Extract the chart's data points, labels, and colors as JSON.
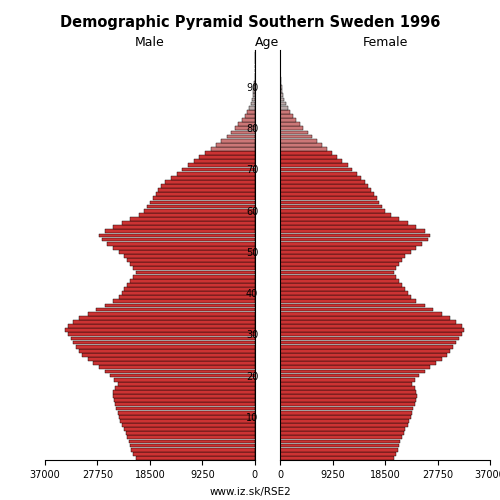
{
  "title": "Demographic Pyramid Southern Sweden 1996",
  "label_male": "Male",
  "label_age": "Age",
  "label_female": "Female",
  "watermark": "www.iz.sk/RSE2",
  "xlim": 37000,
  "bar_color_young": "#CC3333",
  "bar_color_mid": "#CC7777",
  "bar_color_old": "#BBAAAA",
  "bar_edge_color": "#000000",
  "bar_linewidth": 0.3,
  "color_threshold_1": 75,
  "color_threshold_2": 85,
  "ages": [
    0,
    1,
    2,
    3,
    4,
    5,
    6,
    7,
    8,
    9,
    10,
    11,
    12,
    13,
    14,
    15,
    16,
    17,
    18,
    19,
    20,
    21,
    22,
    23,
    24,
    25,
    26,
    27,
    28,
    29,
    30,
    31,
    32,
    33,
    34,
    35,
    36,
    37,
    38,
    39,
    40,
    41,
    42,
    43,
    44,
    45,
    46,
    47,
    48,
    49,
    50,
    51,
    52,
    53,
    54,
    55,
    56,
    57,
    58,
    59,
    60,
    61,
    62,
    63,
    64,
    65,
    66,
    67,
    68,
    69,
    70,
    71,
    72,
    73,
    74,
    75,
    76,
    77,
    78,
    79,
    80,
    81,
    82,
    83,
    84,
    85,
    86,
    87,
    88,
    89,
    90,
    91,
    92,
    93,
    94,
    95,
    96,
    97,
    98
  ],
  "male": [
    21000,
    21500,
    21800,
    22000,
    22200,
    22500,
    22800,
    23100,
    23500,
    23800,
    24000,
    24200,
    24500,
    24700,
    24900,
    25100,
    25000,
    24700,
    24200,
    24800,
    25500,
    26500,
    27500,
    28500,
    29500,
    30500,
    31000,
    31500,
    32000,
    32500,
    33000,
    33500,
    33000,
    32000,
    31000,
    29500,
    28000,
    26500,
    25000,
    24000,
    23500,
    23000,
    22500,
    22000,
    21500,
    21000,
    21500,
    22000,
    22500,
    23000,
    24000,
    25000,
    26000,
    27000,
    27500,
    26500,
    25000,
    23500,
    22000,
    20500,
    19500,
    19000,
    18500,
    18000,
    17500,
    17000,
    16500,
    15800,
    14800,
    13800,
    12800,
    11800,
    10800,
    9800,
    8800,
    7800,
    6800,
    5900,
    5000,
    4200,
    3500,
    2900,
    2300,
    1800,
    1400,
    1000,
    750,
    530,
    370,
    250,
    160,
    100,
    60,
    35,
    18,
    8,
    3,
    1,
    0
  ],
  "female": [
    20000,
    20500,
    20800,
    21000,
    21200,
    21500,
    21800,
    22100,
    22500,
    22800,
    23000,
    23200,
    23500,
    23700,
    23900,
    24100,
    24000,
    23700,
    23200,
    23800,
    24500,
    25500,
    26500,
    27500,
    28500,
    29500,
    30000,
    30500,
    31000,
    31500,
    32000,
    32500,
    32000,
    31000,
    30000,
    28500,
    27000,
    25500,
    24000,
    23000,
    22500,
    22000,
    21500,
    21000,
    20500,
    20000,
    20500,
    21000,
    21500,
    22000,
    23000,
    24000,
    25000,
    26000,
    26500,
    25500,
    24000,
    22500,
    21000,
    19500,
    18500,
    18000,
    17500,
    17000,
    16500,
    16000,
    15500,
    15000,
    14300,
    13500,
    12700,
    11900,
    11000,
    10100,
    9200,
    8300,
    7400,
    6500,
    5700,
    4900,
    4100,
    3450,
    2800,
    2200,
    1750,
    1350,
    1000,
    730,
    530,
    390,
    270,
    180,
    115,
    70,
    40,
    20,
    9,
    3,
    0
  ]
}
